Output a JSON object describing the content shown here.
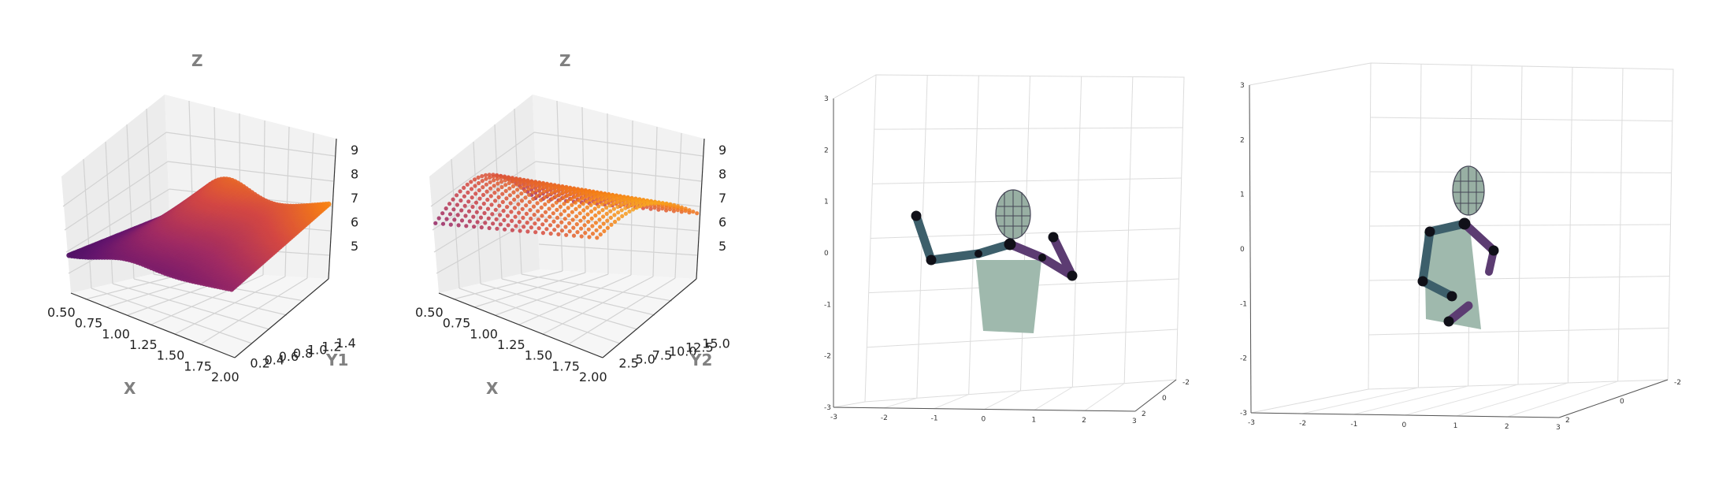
{
  "chart_data": [
    {
      "type": "scatter",
      "panel": "surface-xy1z",
      "xlabel": "X",
      "ylabel": "Y1",
      "zlabel": "Z",
      "xticks": [
        "0.50",
        "0.75",
        "1.00",
        "1.25",
        "1.50",
        "1.75",
        "2.00"
      ],
      "yticks": [
        "0.2",
        "0.4",
        "0.6",
        "0.8",
        "1.0",
        "1.2",
        "1.4"
      ],
      "zticks": [
        "5",
        "6",
        "7",
        "8",
        "9"
      ],
      "xlim": [
        0.5,
        2.0
      ],
      "ylim": [
        0.2,
        1.4
      ],
      "zlim": [
        4.5,
        9.2
      ],
      "colormap": "inferno",
      "grid": true
    },
    {
      "type": "scatter",
      "panel": "surface-xy2z",
      "xlabel": "X",
      "ylabel": "Y2",
      "zlabel": "Z",
      "xticks": [
        "0.50",
        "0.75",
        "1.00",
        "1.25",
        "1.50",
        "1.75",
        "2.00"
      ],
      "yticks": [
        "2.5",
        "5.0",
        "7.5",
        "10.0",
        "12.5",
        "15.0"
      ],
      "zticks": [
        "5",
        "6",
        "7",
        "8",
        "9"
      ],
      "xlim": [
        0.5,
        2.0
      ],
      "ylim": [
        1.0,
        16.0
      ],
      "zlim": [
        4.5,
        9.2
      ],
      "colormap": "inferno",
      "grid": true
    },
    {
      "type": "scatter",
      "panel": "pose-3d-a",
      "xticks": [
        "-3",
        "-2",
        "-1",
        "0",
        "1",
        "2",
        "3"
      ],
      "yticks": [
        "-2",
        "0",
        "2"
      ],
      "zticks": [
        "-3",
        "-2",
        "-1",
        "0",
        "1",
        "2",
        "3"
      ],
      "grid": true
    },
    {
      "type": "scatter",
      "panel": "pose-3d-b",
      "xticks": [
        "-3",
        "-2",
        "-1",
        "0",
        "1",
        "2",
        "3"
      ],
      "yticks": [
        "-2",
        "0",
        "2"
      ],
      "zticks": [
        "-3",
        "-2",
        "-1",
        "0",
        "1",
        "2",
        "3"
      ],
      "grid": true
    }
  ],
  "colors": {
    "axis_title": "#808080",
    "pane_left": "#ececec",
    "pane_back": "#f2f2f2",
    "pane_floor": "#f6f6f6",
    "grid": "#d0d0d0",
    "torso": "#9fb9ad",
    "head": "#98afa3",
    "limb_teal": "#3d5f6b",
    "limb_purple": "#5c3c72",
    "joint": "#101018",
    "pose_grid": "#dcdcdc"
  }
}
